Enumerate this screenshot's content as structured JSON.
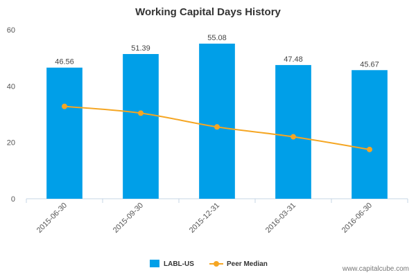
{
  "chart_data": {
    "type": "bar",
    "title": "Working Capital Days History",
    "categories": [
      "2015-06-30",
      "2015-09-30",
      "2015-12-31",
      "2016-03-31",
      "2016-06-30"
    ],
    "series": [
      {
        "name": "LABL-US",
        "type": "bar",
        "color": "#009fe8",
        "values": [
          46.56,
          51.39,
          55.08,
          47.48,
          45.67
        ],
        "labels": [
          "46.56",
          "51.39",
          "55.08",
          "47.48",
          "45.67"
        ]
      },
      {
        "name": "Peer Median",
        "type": "line",
        "color": "#f5a623",
        "values": [
          32.8,
          30.4,
          25.5,
          22.0,
          17.5
        ]
      }
    ],
    "ylim": [
      0,
      60
    ],
    "yticks": [
      "0",
      "20",
      "40",
      "60"
    ],
    "grid": false,
    "legend_position": "bottom-center"
  },
  "watermark": "www.capitalcube.com"
}
